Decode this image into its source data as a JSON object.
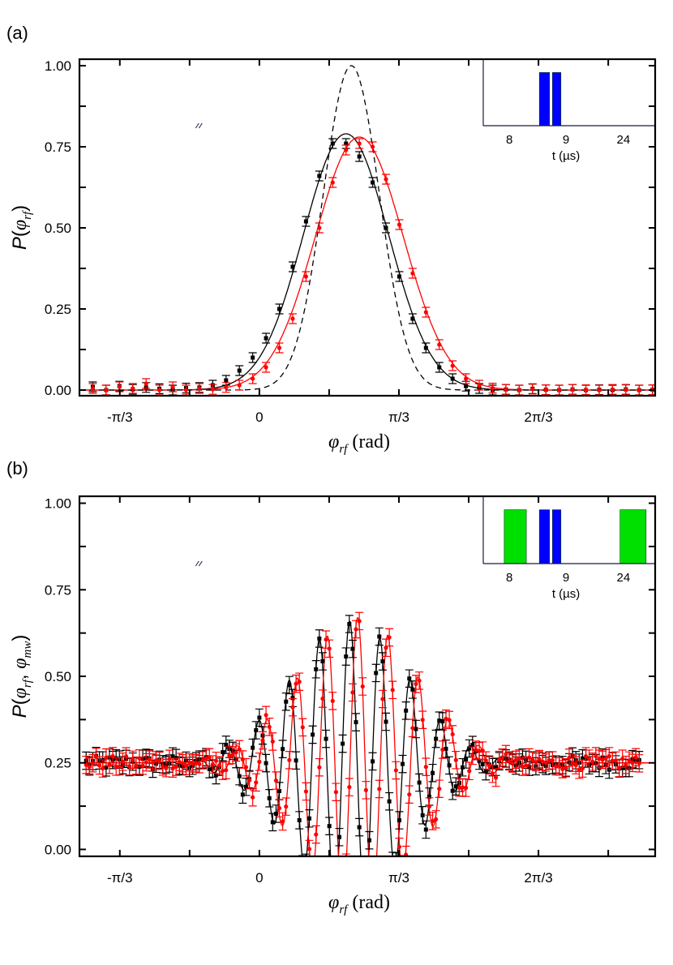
{
  "chart_data": [
    {
      "panel_label": "(a)",
      "type": "scatter",
      "xlabel": [
        {
          "text": "φ",
          "italic": true,
          "serif": true
        },
        {
          "text": "rf",
          "sub": true,
          "italic": true,
          "serif": true
        },
        {
          "text": " (rad)",
          "serif": true
        }
      ],
      "ylabel": [
        {
          "text": "P",
          "italic": true
        },
        {
          "text": "(",
          "serif": false
        },
        {
          "text": "φ",
          "italic": true,
          "serif": true
        },
        {
          "text": "rf",
          "sub": true,
          "italic": true,
          "serif": true
        },
        {
          "text": ")"
        }
      ],
      "xlim": [
        -1.35,
        2.97
      ],
      "ylim": [
        -0.0175,
        1.02
      ],
      "x_ticks": [
        {
          "value": -1.0472,
          "label": "-π/3"
        },
        {
          "value": 0,
          "label": "0"
        },
        {
          "value": 1.0472,
          "label": "π/3"
        },
        {
          "value": 2.0944,
          "label": "2π/3"
        }
      ],
      "x_minor_step": 0.5236,
      "y_ticks": [
        {
          "value": 0,
          "label": "0.00"
        },
        {
          "value": 0.25,
          "label": "0.25"
        },
        {
          "value": 0.5,
          "label": "0.50"
        },
        {
          "value": 0.75,
          "label": "0.75"
        },
        {
          "value": 1.0,
          "label": "1.00"
        }
      ],
      "y_minor_step": 0.125,
      "series": [
        {
          "color": "#000000",
          "marker": "square",
          "error": 0.015,
          "x": [
            -1.25,
            -1.15,
            -1.05,
            -0.95,
            -0.85,
            -0.75,
            -0.65,
            -0.55,
            -0.45,
            -0.35,
            -0.25,
            -0.15,
            -0.05,
            0.05,
            0.15,
            0.25,
            0.35,
            0.45,
            0.55,
            0.65,
            0.75,
            0.85,
            0.95,
            1.05,
            1.15,
            1.25,
            1.35,
            1.45,
            1.55,
            1.65,
            1.75,
            1.85,
            1.95,
            2.05,
            2.15,
            2.25,
            2.35,
            2.45,
            2.55,
            2.65,
            2.75,
            2.85,
            2.95
          ],
          "y": [
            0.01,
            0.0,
            0.012,
            0.002,
            0.008,
            0.004,
            0.0,
            0.006,
            0.008,
            0.015,
            0.03,
            0.06,
            0.1,
            0.16,
            0.25,
            0.38,
            0.52,
            0.66,
            0.76,
            0.76,
            0.72,
            0.64,
            0.5,
            0.35,
            0.22,
            0.13,
            0.07,
            0.035,
            0.012,
            0.005,
            0.0,
            0.002,
            0.0,
            0.004,
            0.001,
            0.0,
            0.002,
            0.0,
            0.001,
            0.0,
            0.002,
            0.0,
            0.001
          ]
        },
        {
          "color": "#ff0000",
          "marker": "circle",
          "error": 0.015,
          "x": [
            -1.25,
            -1.15,
            -1.05,
            -0.95,
            -0.85,
            -0.75,
            -0.65,
            -0.55,
            -0.45,
            -0.35,
            -0.25,
            -0.15,
            -0.05,
            0.05,
            0.15,
            0.25,
            0.35,
            0.45,
            0.55,
            0.65,
            0.75,
            0.85,
            0.95,
            1.05,
            1.15,
            1.25,
            1.35,
            1.45,
            1.55,
            1.65,
            1.75,
            1.85,
            1.95,
            2.05,
            2.15,
            2.25,
            2.35,
            2.45,
            2.55,
            2.65,
            2.75,
            2.85,
            2.95
          ],
          "y": [
            0.005,
            0.0,
            0.01,
            0.005,
            0.02,
            0.0,
            0.01,
            0.0,
            0.005,
            0.002,
            0.008,
            0.015,
            0.035,
            0.07,
            0.13,
            0.22,
            0.35,
            0.5,
            0.64,
            0.74,
            0.76,
            0.75,
            0.65,
            0.51,
            0.36,
            0.24,
            0.14,
            0.075,
            0.035,
            0.015,
            0.006,
            0.002,
            0.0,
            0.003,
            0.001,
            0.0,
            0.002,
            0.001,
            0.0,
            0.002,
            0.001,
            0.0,
            0.001
          ]
        }
      ],
      "fits": [
        {
          "color": "#000000",
          "style": "solid",
          "model": "gaussian",
          "amplitude": 0.79,
          "center": 0.65,
          "sigma": 0.32
        },
        {
          "color": "#ff0000",
          "style": "solid",
          "model": "gaussian",
          "amplitude": 0.78,
          "center": 0.75,
          "sigma": 0.33
        },
        {
          "color": "#000000",
          "style": "dashed",
          "model": "gaussian",
          "amplitude": 1.0,
          "center": 0.69,
          "sigma": 0.21
        }
      ],
      "inset": {
        "xlabel": "t (µs)",
        "ticks": [
          {
            "value": 8,
            "label": "8"
          },
          {
            "value": 9,
            "label": "9"
          },
          {
            "value": 24,
            "label": "24"
          }
        ],
        "axis_break": [
          9.5,
          23.5
        ],
        "xlim": [
          7.54,
          24.56
        ],
        "pulses": [
          {
            "start": 8.53,
            "end": 8.71,
            "color": "#0000ff"
          },
          {
            "start": 8.76,
            "end": 8.91,
            "color": "#0000ff"
          }
        ]
      }
    },
    {
      "panel_label": "(b)",
      "type": "scatter",
      "xlabel": [
        {
          "text": "φ",
          "italic": true,
          "serif": true
        },
        {
          "text": "rf",
          "sub": true,
          "italic": true,
          "serif": true
        },
        {
          "text": " (rad)",
          "serif": true
        }
      ],
      "ylabel": [
        {
          "text": "P",
          "italic": true
        },
        {
          "text": "(",
          "serif": false
        },
        {
          "text": "φ",
          "italic": true,
          "serif": true
        },
        {
          "text": "rf",
          "sub": true,
          "italic": true,
          "serif": true
        },
        {
          "text": ", "
        },
        {
          "text": "φ",
          "italic": true,
          "serif": true
        },
        {
          "text": "mw",
          "sub": true,
          "italic": true,
          "serif": true
        },
        {
          "text": ")"
        }
      ],
      "xlim": [
        -1.35,
        2.97
      ],
      "ylim": [
        -0.02,
        1.02
      ],
      "x_ticks": [
        {
          "value": -1.0472,
          "label": "-π/3"
        },
        {
          "value": 0,
          "label": "0"
        },
        {
          "value": 1.0472,
          "label": "π/3"
        },
        {
          "value": 2.0944,
          "label": "2π/3"
        }
      ],
      "x_minor_step": 0.5236,
      "y_ticks": [
        {
          "value": 0,
          "label": "0.00"
        },
        {
          "value": 0.25,
          "label": "0.25"
        },
        {
          "value": 0.5,
          "label": "0.50"
        },
        {
          "value": 0.75,
          "label": "0.75"
        },
        {
          "value": 1.0,
          "label": "1.00"
        }
      ],
      "y_minor_step": 0.125,
      "series": [
        {
          "color": "#000000",
          "marker": "square",
          "error": 0.025,
          "x_start": -1.3,
          "x_end": 2.85,
          "x_step": 0.025,
          "model": {
            "baseline": 0.25,
            "amplitude": 0.41,
            "center": 0.68,
            "sigma": 0.44,
            "frequency": 27.6,
            "peak_at": 0.677
          },
          "scatter": 0.02
        },
        {
          "color": "#ff0000",
          "marker": "circle",
          "error": 0.025,
          "x_start": -1.3,
          "x_end": 2.85,
          "x_step": 0.025,
          "model": {
            "baseline": 0.25,
            "amplitude": 0.42,
            "center": 0.74,
            "sigma": 0.44,
            "frequency": 27.6,
            "peak_at": 0.737
          },
          "scatter": 0.02
        }
      ],
      "fits": [
        {
          "color": "#000000",
          "style": "solid",
          "model": "oscillation",
          "baseline": 0.25,
          "amplitude": 0.41,
          "center": 0.68,
          "sigma": 0.44,
          "frequency": 27.6,
          "peak_at": 0.677
        },
        {
          "color": "#ff0000",
          "style": "solid",
          "model": "oscillation",
          "baseline": 0.25,
          "amplitude": 0.42,
          "center": 0.74,
          "sigma": 0.44,
          "frequency": 27.6,
          "peak_at": 0.737
        }
      ],
      "inset": {
        "xlabel": "t (µs)",
        "ticks": [
          {
            "value": 8,
            "label": "8"
          },
          {
            "value": 9,
            "label": "9"
          },
          {
            "value": 24,
            "label": "24"
          }
        ],
        "axis_break": [
          9.5,
          23.5
        ],
        "xlim": [
          7.54,
          24.56
        ],
        "pulses": [
          {
            "start": 7.91,
            "end": 8.3,
            "color": "#00e000"
          },
          {
            "start": 8.53,
            "end": 8.71,
            "color": "#0000ff"
          },
          {
            "start": 8.76,
            "end": 8.91,
            "color": "#0000ff"
          },
          {
            "start": 23.94,
            "end": 24.4,
            "color": "#00e000"
          }
        ]
      }
    }
  ]
}
